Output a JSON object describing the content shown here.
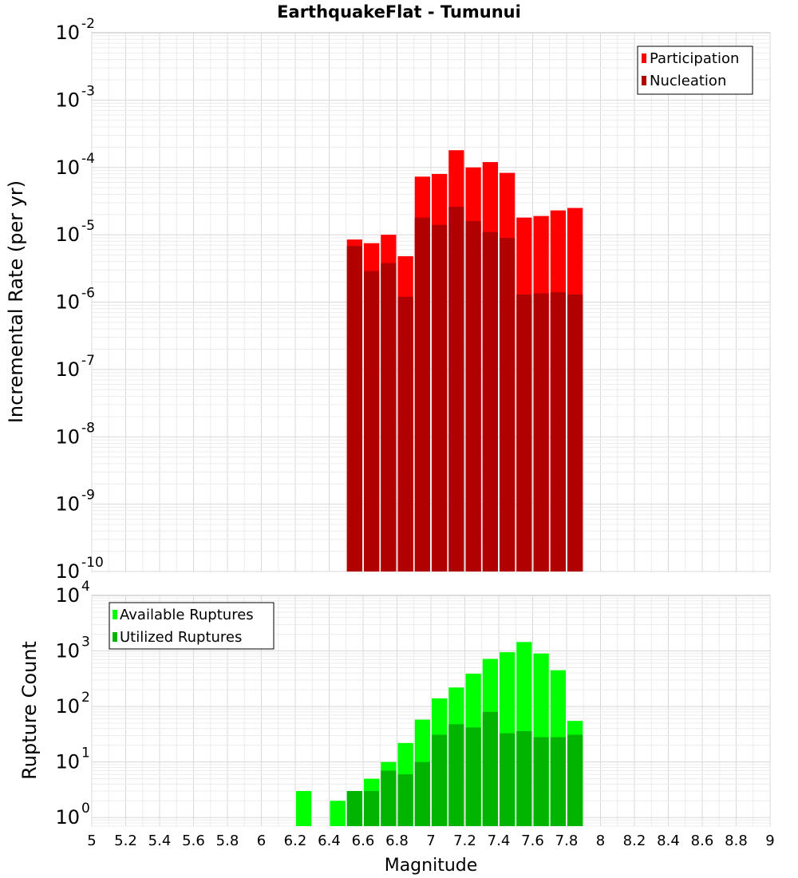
{
  "chart_data": [
    {
      "type": "bar",
      "title": "EarthquakeFlat - Tumunui",
      "xlabel": "",
      "ylabel": "Incremental Rate (per yr)",
      "yscale": "log",
      "ylim": [
        1e-10,
        0.01
      ],
      "xlim": [
        5,
        9
      ],
      "grid": true,
      "legend_position": "top-right",
      "ytick_exponents": [
        "-10",
        "-9",
        "-8",
        "-7",
        "-6",
        "-5",
        "-4",
        "-3",
        "-2"
      ],
      "ytick_base": "10",
      "bar_width": 0.1,
      "x": [
        6.55,
        6.65,
        6.75,
        6.85,
        6.95,
        7.05,
        7.15,
        7.25,
        7.35,
        7.45,
        7.55,
        7.65,
        7.75,
        7.85
      ],
      "series": [
        {
          "name": "Participation",
          "color": "#ff0000",
          "values": [
            8.5e-06,
            7.5e-06,
            1e-05,
            4.8e-06,
            7.3e-05,
            8e-05,
            0.00018,
            0.0001,
            0.00012,
            8.3e-05,
            1.8e-05,
            1.9e-05,
            2.3e-05,
            2.5e-05
          ]
        },
        {
          "name": "Nucleation",
          "color": "#b00000",
          "values": [
            6.8e-06,
            2.9e-06,
            3.8e-06,
            1.2e-06,
            1.8e-05,
            1.4e-05,
            2.6e-05,
            1.6e-05,
            1.1e-05,
            9e-06,
            1.3e-06,
            1.35e-06,
            1.4e-06,
            1.3e-06
          ]
        }
      ]
    },
    {
      "type": "bar",
      "title": "",
      "xlabel": "Magnitude",
      "ylabel": "Rupture Count",
      "yscale": "log",
      "ylim": [
        0.7,
        10000
      ],
      "xlim": [
        5,
        9
      ],
      "grid": true,
      "legend_position": "top-left",
      "ytick_values": [
        1,
        10,
        100,
        1000,
        10000
      ],
      "ytick_exponents": [
        "0",
        "1",
        "2",
        "3",
        "4"
      ],
      "ytick_base": "10",
      "xticks": [
        "5",
        "5.2",
        "5.4",
        "5.6",
        "5.8",
        "6",
        "6.2",
        "6.4",
        "6.6",
        "6.8",
        "7",
        "7.2",
        "7.4",
        "7.6",
        "7.8",
        "8",
        "8.2",
        "8.4",
        "8.6",
        "8.8",
        "9"
      ],
      "bar_width": 0.1,
      "x": [
        6.25,
        6.45,
        6.55,
        6.65,
        6.75,
        6.85,
        6.95,
        7.05,
        7.15,
        7.25,
        7.35,
        7.45,
        7.55,
        7.65,
        7.75,
        7.85
      ],
      "series": [
        {
          "name": "Available Ruptures",
          "color": "#00ff00",
          "values": [
            3,
            2,
            3,
            5,
            10,
            22,
            58,
            140,
            220,
            390,
            720,
            950,
            1450,
            900,
            450,
            55
          ]
        },
        {
          "name": "Utilized Ruptures",
          "color": "#00b400",
          "values": [
            0,
            0,
            3,
            3,
            7,
            6,
            10,
            31,
            48,
            42,
            80,
            33,
            36,
            28,
            28,
            31
          ]
        }
      ]
    }
  ]
}
